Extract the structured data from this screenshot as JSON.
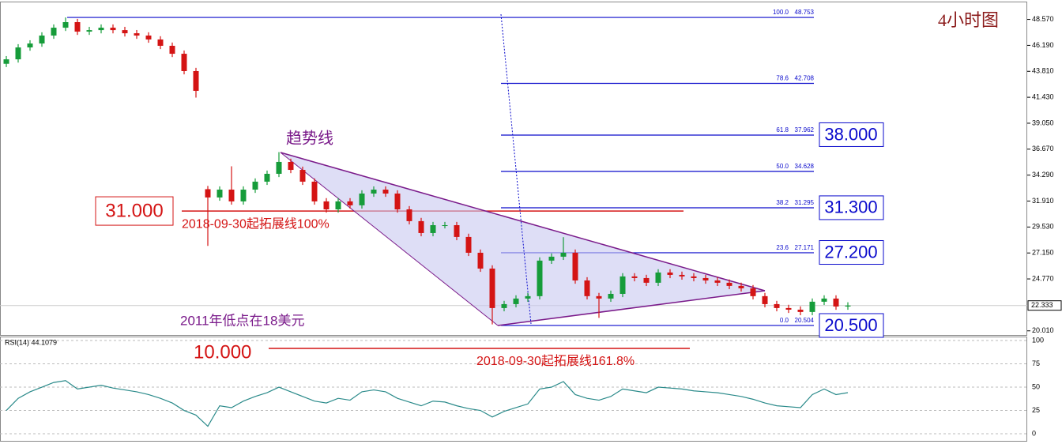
{
  "chart_data": [
    {
      "type": "candlestick",
      "title": "4小时图",
      "open": [
        44.5,
        44.91,
        46.0,
        46.36,
        47.09,
        47.81,
        48.32,
        47.45,
        47.59,
        47.81,
        47.59,
        47.3,
        47.09,
        46.73,
        46.15,
        45.42,
        43.83,
        33.0,
        32.24,
        32.96,
        31.88,
        32.96,
        33.69,
        34.41,
        35.5,
        34.77,
        33.69,
        31.88,
        31.15,
        31.88,
        31.52,
        32.6,
        32.96,
        32.6,
        31.15,
        30.07,
        28.98,
        29.7,
        29.7,
        28.62,
        27.17,
        25.72,
        22.1,
        22.46,
        22.97,
        23.19,
        26.45,
        26.81,
        27.17,
        24.63,
        23.19,
        22.97,
        23.4,
        25.0,
        24.85,
        24.42,
        25.36,
        25.14,
        25.0,
        24.85,
        24.63,
        24.42,
        24.13,
        23.91,
        23.19,
        22.46,
        22.1,
        21.95,
        21.74,
        22.68,
        22.97,
        22.24
      ],
      "high": [
        45.21,
        46.3,
        46.66,
        47.39,
        48.11,
        48.75,
        48.62,
        47.89,
        48.11,
        48.11,
        47.89,
        47.6,
        47.39,
        47.03,
        46.45,
        45.72,
        44.13,
        33.3,
        33.26,
        35.1,
        33.26,
        33.99,
        34.71,
        36.4,
        35.8,
        35.07,
        33.99,
        32.18,
        32.18,
        32.18,
        32.9,
        33.26,
        33.26,
        32.9,
        31.45,
        30.37,
        30.0,
        30.0,
        30.0,
        28.92,
        27.47,
        26.02,
        22.76,
        23.27,
        23.49,
        26.75,
        27.11,
        28.6,
        27.47,
        24.93,
        23.49,
        23.7,
        25.3,
        25.3,
        25.15,
        25.66,
        25.66,
        25.44,
        25.3,
        25.15,
        24.93,
        24.72,
        24.43,
        24.21,
        23.49,
        22.76,
        22.4,
        22.25,
        22.98,
        23.27,
        23.27,
        22.63
      ],
      "low": [
        44.2,
        44.61,
        45.7,
        46.06,
        46.79,
        47.51,
        47.15,
        47.15,
        47.29,
        47.29,
        47.0,
        46.79,
        46.43,
        45.85,
        45.12,
        43.53,
        41.4,
        27.8,
        31.94,
        31.58,
        31.58,
        32.66,
        33.39,
        34.11,
        34.47,
        33.39,
        31.58,
        30.85,
        30.85,
        31.22,
        31.22,
        32.3,
        32.3,
        30.85,
        29.77,
        28.68,
        28.68,
        29.4,
        28.32,
        26.87,
        25.42,
        20.6,
        21.8,
        22.16,
        22.67,
        22.89,
        26.15,
        26.51,
        24.33,
        22.89,
        21.2,
        22.67,
        23.1,
        24.55,
        24.12,
        24.12,
        24.84,
        24.7,
        24.55,
        24.33,
        24.12,
        23.83,
        23.61,
        22.89,
        22.16,
        21.8,
        21.65,
        21.44,
        21.44,
        22.38,
        21.94,
        21.94
      ],
      "close": [
        44.91,
        46.0,
        46.36,
        47.09,
        47.81,
        48.32,
        47.45,
        47.59,
        47.81,
        47.59,
        47.3,
        47.09,
        46.73,
        46.15,
        45.42,
        43.83,
        42.02,
        32.24,
        32.96,
        31.88,
        32.96,
        33.69,
        34.41,
        35.5,
        34.77,
        33.69,
        31.88,
        31.15,
        31.88,
        31.52,
        32.6,
        32.96,
        32.6,
        31.15,
        30.07,
        28.98,
        29.7,
        29.7,
        28.62,
        27.17,
        25.72,
        22.1,
        22.46,
        22.97,
        23.19,
        26.45,
        26.81,
        27.17,
        24.63,
        23.19,
        22.97,
        23.4,
        25.0,
        24.85,
        24.42,
        25.36,
        25.14,
        25.0,
        24.85,
        24.63,
        24.42,
        24.13,
        23.91,
        23.19,
        22.46,
        22.1,
        21.95,
        21.74,
        22.68,
        22.97,
        22.24,
        22.33
      ],
      "up_color": "#169c3a",
      "down_color": "#d41414",
      "ylim": [
        19.63,
        50.06
      ],
      "yticks": [
        {
          "value": 48.57,
          "label": "48.570"
        },
        {
          "value": 46.19,
          "label": "46.190"
        },
        {
          "value": 43.81,
          "label": "43.810"
        },
        {
          "value": 41.43,
          "label": "41.430"
        },
        {
          "value": 39.05,
          "label": "39.050"
        },
        {
          "value": 36.67,
          "label": "36.670"
        },
        {
          "value": 34.29,
          "label": "34.290"
        },
        {
          "value": 31.91,
          "label": "31.910"
        },
        {
          "value": 29.53,
          "label": "29.530"
        },
        {
          "value": 27.15,
          "label": "27.150"
        },
        {
          "value": 24.77,
          "label": "24.770"
        },
        {
          "value": 20.01,
          "label": "20.010"
        }
      ],
      "current_price": 22.333,
      "fibonacci": [
        {
          "level": "100.0",
          "price": 48.753
        },
        {
          "level": "78.6",
          "price": 42.708
        },
        {
          "level": "61.8",
          "price": 37.962
        },
        {
          "level": "50.0",
          "price": 34.628
        },
        {
          "level": "38.2",
          "price": 31.295
        },
        {
          "level": "23.6",
          "price": 27.171
        },
        {
          "level": "0.0",
          "price": 20.504
        }
      ],
      "fib_color": "#0a0acc",
      "targets": [
        {
          "value": 38,
          "label": "38.000"
        },
        {
          "value": 31.3,
          "label": "31.300"
        },
        {
          "value": 27.2,
          "label": "27.200"
        },
        {
          "value": 20.5,
          "label": "20.500"
        }
      ],
      "level": {
        "value": 31,
        "label": "31.000",
        "text": "2018-09-30起拓展线100%"
      },
      "projection": {
        "label": "10.000",
        "text": "2018-09-30起拓展线161.8%"
      },
      "trendline_label": "趋势线",
      "low_note": "2011年低点在18美元"
    },
    {
      "type": "line",
      "title": "RSI(14) 44.1079",
      "values": [
        25,
        38,
        45,
        50,
        55,
        57,
        48,
        50,
        52,
        49,
        47,
        45,
        42,
        38,
        33,
        25,
        20,
        8,
        30,
        28,
        35,
        40,
        44,
        50,
        45,
        40,
        35,
        33,
        38,
        36,
        45,
        47,
        45,
        38,
        34,
        30,
        35,
        34,
        30,
        27,
        25,
        18,
        24,
        28,
        32,
        48,
        50,
        56,
        42,
        38,
        36,
        40,
        48,
        46,
        44,
        50,
        49,
        48,
        46,
        45,
        44,
        42,
        40,
        37,
        33,
        30,
        29,
        28,
        42,
        48,
        42,
        44.11
      ],
      "color": "#2a8a8a",
      "ylim": [
        -7.6,
        103.4
      ],
      "yticks": [
        100,
        75,
        50,
        25,
        0
      ]
    }
  ]
}
